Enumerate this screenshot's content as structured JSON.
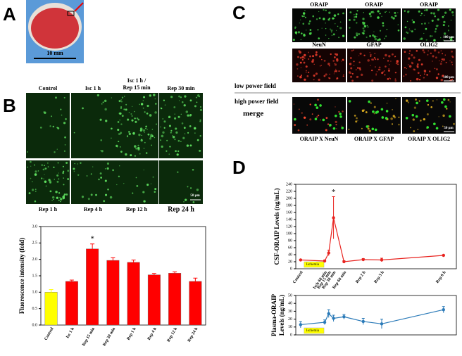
{
  "panels": {
    "a": "A",
    "b": "B",
    "c": "C",
    "d": "D"
  },
  "panel_a": {
    "scale": "10 mm"
  },
  "panel_b": {
    "top": [
      "Control",
      "Isc 1 h",
      [
        "Isc 1 h /",
        "Rep 15 min"
      ],
      "Rep 30 min"
    ],
    "bottom": [
      "Rep 1 h",
      "Rep 4 h",
      "Rep 12 h",
      "Rep 24 h"
    ],
    "scale": "50 μm"
  },
  "panel_c": {
    "row1": [
      "ORAIP",
      "ORAIP",
      "ORAIP"
    ],
    "row2": [
      "NeuN",
      "GFAP",
      "OLIG2"
    ],
    "bottom": [
      "ORAIP X NeuN",
      "ORAIP X GFAP",
      "ORAIP X OLIG2"
    ],
    "low": "low power field",
    "high": "high power field",
    "merge": "merge",
    "scale1": "100 μm",
    "scale2": "100 μm",
    "scale3": "50 μm"
  },
  "chart_data": [
    {
      "type": "bar",
      "ylabel": "Fluorescence intensity (fold)",
      "categories": [
        "Control",
        "Isc 1 h",
        "Rep 15 min",
        "Rep 30 min",
        "Rep 1 h",
        "Rep 4 h",
        "Rep 12 h",
        "Rep 24 h"
      ],
      "values": [
        1.0,
        1.33,
        2.32,
        1.97,
        1.91,
        1.53,
        1.58,
        1.33
      ],
      "errors": [
        0.08,
        0.04,
        0.15,
        0.08,
        0.07,
        0.04,
        0.04,
        0.1
      ],
      "colors": [
        "#ffff00",
        "#ff0000",
        "#ff0000",
        "#ff0000",
        "#ff0000",
        "#ff0000",
        "#ff0000",
        "#ff0000"
      ],
      "annotation": "*",
      "ylim": [
        0,
        3
      ],
      "yticks": [
        {
          "value": 0,
          "label": "0.0"
        },
        {
          "value": 0.5,
          "label": "0.5"
        },
        {
          "value": 1,
          "label": "1.0"
        },
        {
          "value": 1.5,
          "label": "1.5"
        },
        {
          "value": 2,
          "label": "2.0"
        },
        {
          "value": 2.5,
          "label": "2.5"
        },
        {
          "value": 3,
          "label": "3.0"
        }
      ]
    },
    {
      "type": "line",
      "ylabel": "CSF-ORAIP Levels (ng/mL)",
      "categories": [
        "Control",
        "Isch 60 min",
        "Rep 15 min",
        "Rep 30 min",
        "Rep 60 min",
        "Rep 2 h",
        "Rep 3 h",
        "Rep 6 h"
      ],
      "values": [
        25,
        22,
        45,
        145,
        20,
        26,
        25,
        38
      ],
      "errors": [
        2,
        3,
        8,
        60,
        3,
        3,
        5,
        2
      ],
      "color": "#e8231f",
      "annotation": "*",
      "box": "Ischemia",
      "ylim": [
        0,
        240
      ],
      "yticks": [
        0,
        20,
        40,
        60,
        80,
        100,
        120,
        140,
        160,
        180,
        200,
        220,
        240
      ]
    },
    {
      "type": "line",
      "ylabel": [
        "Plasma-ORAIP",
        "Levels (ng/mL)"
      ],
      "values": [
        13,
        16,
        27,
        21,
        23,
        17,
        14,
        32
      ],
      "errors": [
        4,
        3,
        5,
        4,
        3,
        4,
        6,
        4
      ],
      "color": "#2a7ab8",
      "box": "Ischemia",
      "ylim": [
        0,
        50
      ],
      "yticks": [
        0,
        10,
        20,
        30,
        40,
        50
      ]
    }
  ]
}
